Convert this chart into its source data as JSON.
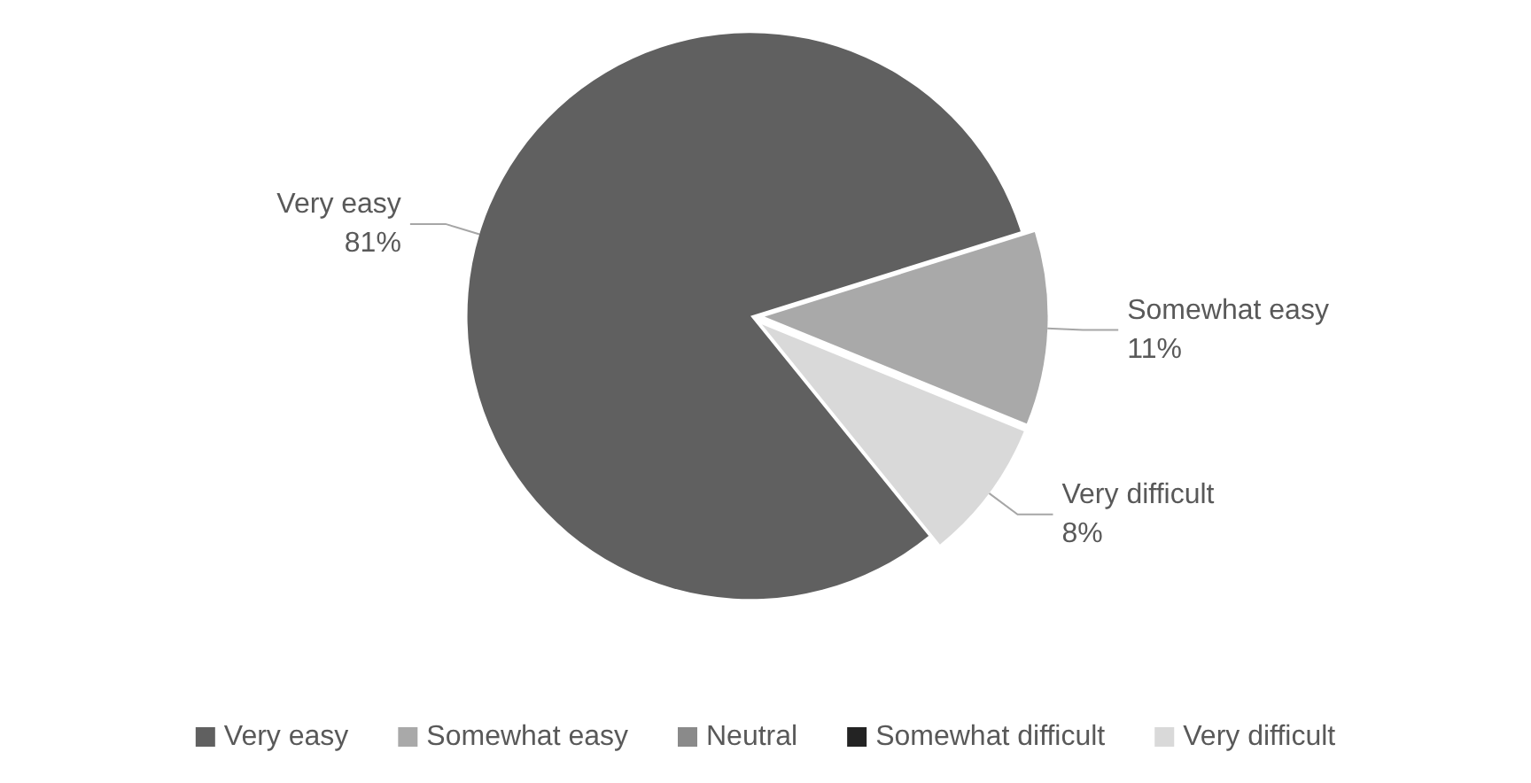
{
  "chart_data": {
    "type": "pie",
    "categories": [
      "Very easy",
      "Somewhat easy",
      "Neutral",
      "Somewhat difficult",
      "Very difficult"
    ],
    "values": [
      81,
      11,
      0,
      0,
      8
    ],
    "colors": [
      "#606060",
      "#a9a9a9",
      "#8a8a8a",
      "#232323",
      "#d9d9d9"
    ],
    "value_labels": [
      "81%",
      "11%",
      null,
      null,
      "8%"
    ],
    "legend": "bottom"
  }
}
